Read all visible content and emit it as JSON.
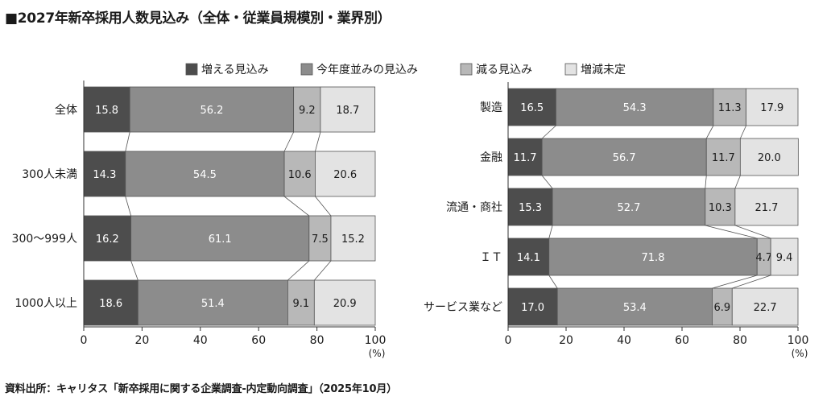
{
  "title": "■2027年新卒採用人数見込み（全体・従業員規模別・業界別）",
  "source": "資料出所：キャリタス「新卒採用に関する企業調査-内定動向調査」（2025年10月）",
  "legend": [
    {
      "name": "増える見込み",
      "color": "#4d4d4d"
    },
    {
      "name": "今年度並みの見込み",
      "color": "#8c8c8c"
    },
    {
      "name": "減る見込み",
      "color": "#b8b8b8"
    },
    {
      "name": "増減未定",
      "color": "#e3e3e3"
    }
  ],
  "chart_data": [
    {
      "type": "bar",
      "orientation": "horizontal",
      "stacked": true,
      "categories": [
        "全体",
        "300人未満",
        "300～999人",
        "1000人以上"
      ],
      "series": [
        {
          "name": "増える見込み",
          "values": [
            15.8,
            14.3,
            16.2,
            18.6
          ]
        },
        {
          "name": "今年度並みの見込み",
          "values": [
            56.2,
            54.5,
            61.1,
            51.4
          ]
        },
        {
          "name": "減る見込み",
          "values": [
            9.2,
            10.6,
            7.5,
            9.1
          ]
        },
        {
          "name": "増減未定",
          "values": [
            18.7,
            20.6,
            15.2,
            20.9
          ]
        }
      ],
      "xlim": [
        0,
        100
      ],
      "xticks": [
        "0",
        "20",
        "40",
        "60",
        "80",
        "100"
      ],
      "unit": "(%)"
    },
    {
      "type": "bar",
      "orientation": "horizontal",
      "stacked": true,
      "categories": [
        "製造",
        "金融",
        "流通・商社",
        "ＩＴ",
        "サービス業など"
      ],
      "series": [
        {
          "name": "増える見込み",
          "values": [
            16.5,
            11.7,
            15.3,
            14.1,
            17.0
          ]
        },
        {
          "name": "今年度並みの見込み",
          "values": [
            54.3,
            56.7,
            52.7,
            71.8,
            53.4
          ]
        },
        {
          "name": "減る見込み",
          "values": [
            11.3,
            11.7,
            10.3,
            4.7,
            6.9
          ]
        },
        {
          "name": "増減未定",
          "values": [
            17.9,
            20.0,
            21.7,
            9.4,
            22.7
          ]
        }
      ],
      "xlim": [
        0,
        100
      ],
      "xticks": [
        "0",
        "20",
        "40",
        "60",
        "80",
        "100"
      ],
      "unit": "(%)"
    }
  ]
}
